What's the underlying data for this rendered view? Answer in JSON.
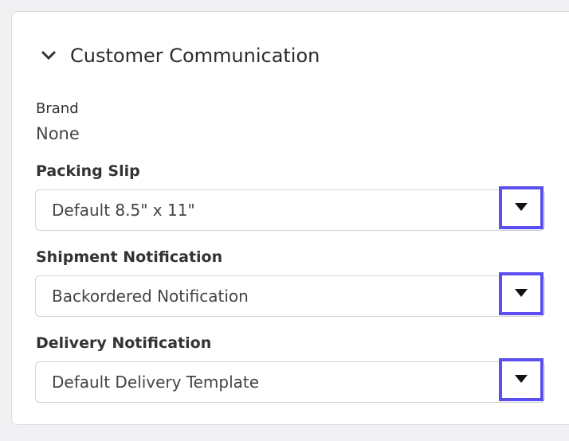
{
  "panel": {
    "title": "Customer Communication",
    "brand": {
      "label": "Brand",
      "value": "None"
    },
    "fields": [
      {
        "label": "Packing Slip",
        "value": "Default 8.5\" x 11\""
      },
      {
        "label": "Shipment Notification",
        "value": "Backordered Notification"
      },
      {
        "label": "Delivery Notification",
        "value": "Default Delivery Template"
      }
    ]
  }
}
